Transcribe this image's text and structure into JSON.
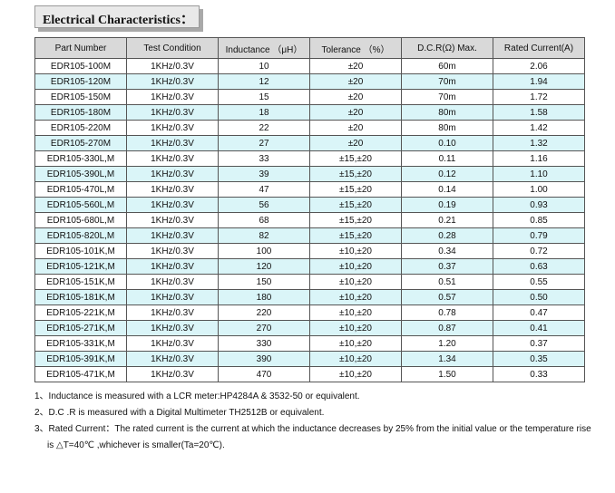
{
  "title": "Electrical Characteristics：",
  "table": {
    "headers": [
      "Part Number",
      "Test Condition",
      "Inductance （μH）",
      "Tolerance （%）",
      "D.C.R(Ω) Max.",
      "Rated Current(A)"
    ],
    "rows": [
      [
        "EDR105-100M",
        "1KHz/0.3V",
        "10",
        "±20",
        "60m",
        "2.06"
      ],
      [
        "EDR105-120M",
        "1KHz/0.3V",
        "12",
        "±20",
        "70m",
        "1.94"
      ],
      [
        "EDR105-150M",
        "1KHz/0.3V",
        "15",
        "±20",
        "70m",
        "1.72"
      ],
      [
        "EDR105-180M",
        "1KHz/0.3V",
        "18",
        "±20",
        "80m",
        "1.58"
      ],
      [
        "EDR105-220M",
        "1KHz/0.3V",
        "22",
        "±20",
        "80m",
        "1.42"
      ],
      [
        "EDR105-270M",
        "1KHz/0.3V",
        "27",
        "±20",
        "0.10",
        "1.32"
      ],
      [
        "EDR105-330L,M",
        "1KHz/0.3V",
        "33",
        "±15,±20",
        "0.11",
        "1.16"
      ],
      [
        "EDR105-390L,M",
        "1KHz/0.3V",
        "39",
        "±15,±20",
        "0.12",
        "1.10"
      ],
      [
        "EDR105-470L,M",
        "1KHz/0.3V",
        "47",
        "±15,±20",
        "0.14",
        "1.00"
      ],
      [
        "EDR105-560L,M",
        "1KHz/0.3V",
        "56",
        "±15,±20",
        "0.19",
        "0.93"
      ],
      [
        "EDR105-680L,M",
        "1KHz/0.3V",
        "68",
        "±15,±20",
        "0.21",
        "0.85"
      ],
      [
        "EDR105-820L,M",
        "1KHz/0.3V",
        "82",
        "±15,±20",
        "0.28",
        "0.79"
      ],
      [
        "EDR105-101K,M",
        "1KHz/0.3V",
        "100",
        "±10,±20",
        "0.34",
        "0.72"
      ],
      [
        "EDR105-121K,M",
        "1KHz/0.3V",
        "120",
        "±10,±20",
        "0.37",
        "0.63"
      ],
      [
        "EDR105-151K,M",
        "1KHz/0.3V",
        "150",
        "±10,±20",
        "0.51",
        "0.55"
      ],
      [
        "EDR105-181K,M",
        "1KHz/0.3V",
        "180",
        "±10,±20",
        "0.57",
        "0.50"
      ],
      [
        "EDR105-221K,M",
        "1KHz/0.3V",
        "220",
        "±10,±20",
        "0.78",
        "0.47"
      ],
      [
        "EDR105-271K,M",
        "1KHz/0.3V",
        "270",
        "±10,±20",
        "0.87",
        "0.41"
      ],
      [
        "EDR105-331K,M",
        "1KHz/0.3V",
        "330",
        "±10,±20",
        "1.20",
        "0.37"
      ],
      [
        "EDR105-391K,M",
        "1KHz/0.3V",
        "390",
        "±10,±20",
        "1.34",
        "0.35"
      ],
      [
        "EDR105-471K,M",
        "1KHz/0.3V",
        "470",
        "±10,±20",
        "1.50",
        "0.33"
      ]
    ]
  },
  "notes": [
    "1、Inductance is measured with a LCR meter:HP4284A & 3532-50 or equivalent.",
    "2、D.C .R is measured with a Digital Multimeter TH2512B or equivalent.",
    "3、Rated Current：The rated current is the current at which the inductance decreases by 25% from the initial value or the temperature rise is △T=40℃ ,whichever is smaller(Ta=20℃)."
  ]
}
